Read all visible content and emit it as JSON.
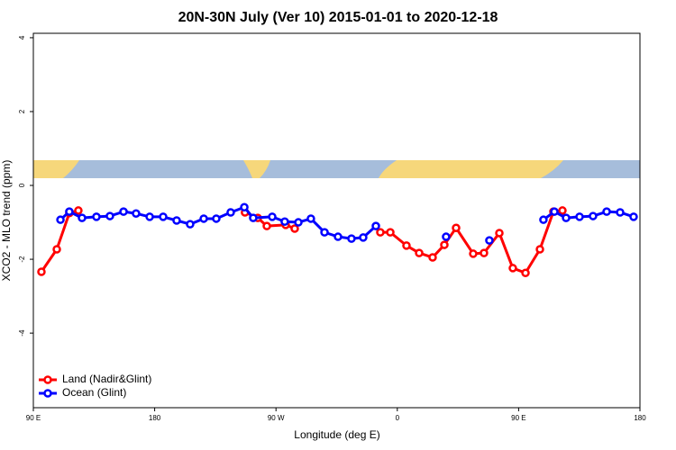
{
  "chart_data": {
    "type": "line",
    "title": "20N-30N July (Ver 10)   2015-01-01 to 2020-12-18",
    "x_label": "Longitude (deg E)",
    "y_label": "XCO2 - MLO trend (ppm)",
    "xlim": [
      90,
      540
    ],
    "ylim": [
      -6.02,
      4.12
    ],
    "xticks": [
      {
        "value": 90,
        "label": "90 E"
      },
      {
        "value": 180,
        "label": "180"
      },
      {
        "value": 270,
        "label": "90 W"
      },
      {
        "value": 360,
        "label": "0"
      },
      {
        "value": 450,
        "label": "90 E"
      },
      {
        "value": 540,
        "label": "180"
      }
    ],
    "yticks": [
      -4,
      -2,
      0,
      2,
      4
    ],
    "legend": "bottom-left",
    "series": [
      {
        "name": "Land (Nadir&Glint)",
        "color": "#ff0000",
        "x": [
          96,
          107.4,
          116.7,
          123.4,
          null,
          247,
          256.5,
          263.2,
          277.2,
          283.9,
          null,
          347.4,
          354.8,
          366.8,
          376.2,
          386.2,
          394.9,
          403.6,
          416.3,
          424.3,
          435.7,
          445.7,
          455.1,
          465.8,
          475.8,
          482.5
        ],
        "values": [
          -2.34,
          -1.73,
          -0.75,
          -0.68,
          null,
          -0.73,
          -0.88,
          -1.1,
          -1.07,
          -1.17,
          null,
          -1.27,
          -1.27,
          -1.63,
          -1.83,
          -1.95,
          -1.61,
          -1.15,
          -1.85,
          -1.83,
          -1.29,
          -2.24,
          -2.37,
          -1.73,
          -0.71,
          -0.68
        ]
      },
      {
        "name": "Ocean (Glint)",
        "color": "#0000ff",
        "x": [
          110.1,
          116.7,
          126.1,
          136.8,
          146.8,
          156.9,
          166.2,
          176.3,
          186.3,
          196.3,
          206.3,
          216.4,
          225.7,
          236.4,
          246.5,
          253.1,
          267.2,
          276.5,
          286.6,
          295.9,
          306,
          316,
          326,
          334.7,
          344.1,
          null,
          396.2,
          null,
          428.3,
          null,
          468.4,
          476.5,
          485.2,
          495.2,
          505.2,
          515.3,
          525.3,
          535.3
        ],
        "values": [
          -0.93,
          -0.71,
          -0.88,
          -0.85,
          -0.83,
          -0.71,
          -0.76,
          -0.85,
          -0.85,
          -0.95,
          -1.05,
          -0.9,
          -0.9,
          -0.73,
          -0.59,
          -0.88,
          -0.85,
          -0.98,
          -1.0,
          -0.9,
          -1.27,
          -1.39,
          -1.44,
          -1.41,
          -1.1,
          null,
          -1.39,
          null,
          -1.49,
          null,
          -0.93,
          -0.71,
          -0.88,
          -0.85,
          -0.83,
          -0.71,
          -0.73,
          -0.85
        ]
      }
    ]
  }
}
